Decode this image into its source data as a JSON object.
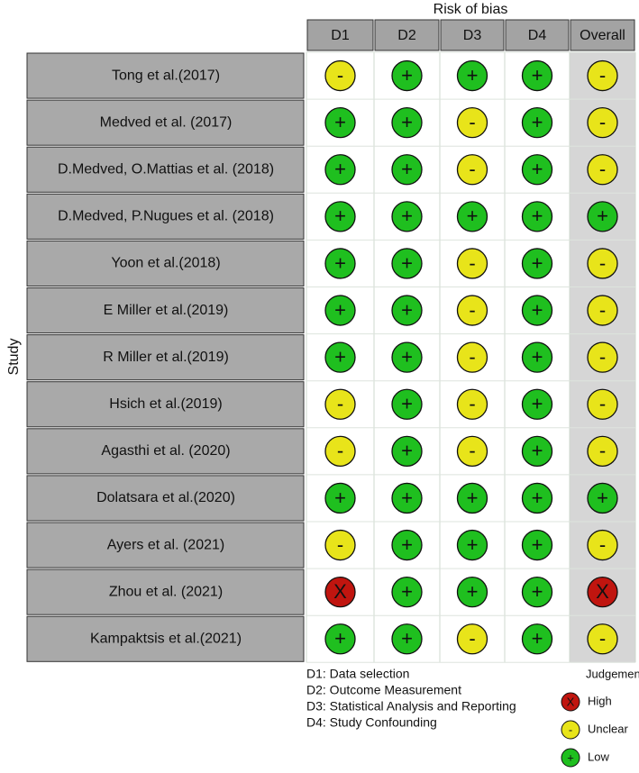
{
  "title": "Risk of bias",
  "y_label": "Study",
  "columns": [
    "D1",
    "D2",
    "D3",
    "D4",
    "Overall"
  ],
  "rows": [
    {
      "study": "Tong et al.(2017)",
      "judgements": [
        "-",
        "+",
        "+",
        "+",
        "-"
      ]
    },
    {
      "study": "Medved et al. (2017)",
      "judgements": [
        "+",
        "+",
        "-",
        "+",
        "-"
      ]
    },
    {
      "study": "D.Medved, O.Mattias et al. (2018)",
      "judgements": [
        "+",
        "+",
        "-",
        "+",
        "-"
      ]
    },
    {
      "study": "D.Medved, P.Nugues et al. (2018)",
      "judgements": [
        "+",
        "+",
        "+",
        "+",
        "+"
      ]
    },
    {
      "study": "Yoon et al.(2018)",
      "judgements": [
        "+",
        "+",
        "-",
        "+",
        "-"
      ]
    },
    {
      "study": "E Miller et al.(2019)",
      "judgements": [
        "+",
        "+",
        "-",
        "+",
        "-"
      ]
    },
    {
      "study": "R Miller et al.(2019)",
      "judgements": [
        "+",
        "+",
        "-",
        "+",
        "-"
      ]
    },
    {
      "study": "Hsich et al.(2019)",
      "judgements": [
        "-",
        "+",
        "-",
        "+",
        "-"
      ]
    },
    {
      "study": "Agasthi et al. (2020)",
      "judgements": [
        "-",
        "+",
        "-",
        "+",
        "-"
      ]
    },
    {
      "study": "Dolatsara et al.(2020)",
      "judgements": [
        "+",
        "+",
        "+",
        "+",
        "+"
      ]
    },
    {
      "study": "Ayers et al. (2021)",
      "judgements": [
        "-",
        "+",
        "+",
        "+",
        "-"
      ]
    },
    {
      "study": "Zhou et al. (2021)",
      "judgements": [
        "X",
        "+",
        "+",
        "+",
        "X"
      ]
    },
    {
      "study": "Kampaktsis et al.(2021)",
      "judgements": [
        "+",
        "+",
        "-",
        "+",
        "-"
      ]
    }
  ],
  "notes": [
    "D1: Data selection",
    "D2: Outcome Measurement",
    "D3: Statistical Analysis and Reporting",
    "D4: Study Confounding"
  ],
  "legend": {
    "title": "Judgement",
    "items": [
      {
        "symbol": "X",
        "label": "High",
        "color": "#c0150f"
      },
      {
        "symbol": "-",
        "label": "Unclear",
        "color": "#e8e41a"
      },
      {
        "symbol": "+",
        "label": "Low",
        "color": "#1fbf1f"
      }
    ]
  }
}
